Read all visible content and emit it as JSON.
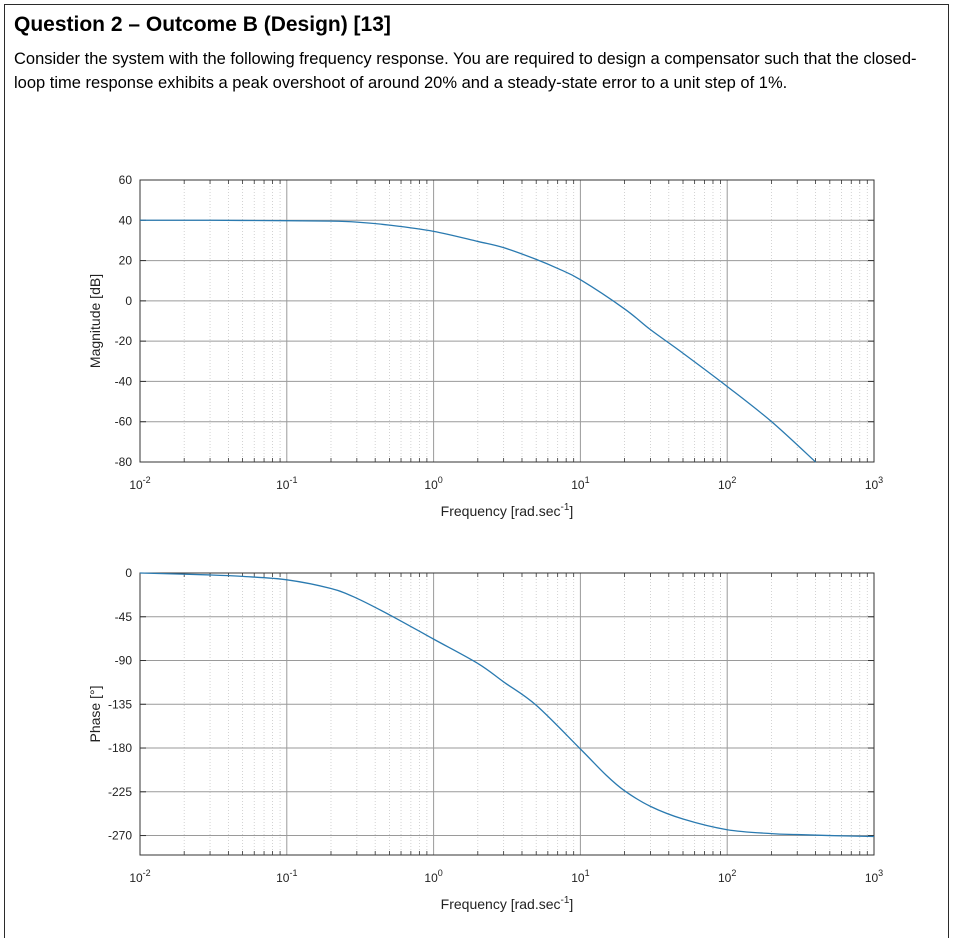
{
  "question": {
    "title": "Question 2 – Outcome B (Design) [13]",
    "text": "Consider the system with the following frequency response. You are required to design a compensator such that the closed-loop time response exhibits a peak overshoot of around 20% and a steady-state error to a unit step of 1%."
  },
  "colors": {
    "curve": "#2a7ab0",
    "major_grid": "#9a9a9a",
    "minor_grid": "#c8c8c8",
    "frame": "#333333"
  },
  "chart_data": [
    {
      "type": "line",
      "id": "magnitude",
      "xscale": "log",
      "xlim": [
        0.01,
        1000
      ],
      "ylim": [
        -80,
        60
      ],
      "xticks": [
        0.01,
        0.1,
        1,
        10,
        100,
        1000
      ],
      "xtick_labels": [
        {
          "base": "10",
          "exp": "-2"
        },
        {
          "base": "10",
          "exp": "-1"
        },
        {
          "base": "10",
          "exp": "0"
        },
        {
          "base": "10",
          "exp": "1"
        },
        {
          "base": "10",
          "exp": "2"
        },
        {
          "base": "10",
          "exp": "3"
        }
      ],
      "yticks": [
        60,
        40,
        20,
        0,
        -20,
        -40,
        -60,
        -80
      ],
      "ytick_labels": [
        "60",
        "40",
        "20",
        "0",
        "-20",
        "-40",
        "-60",
        "-80"
      ],
      "xlabel": {
        "text": "Frequency [rad.sec",
        "sup": "-1",
        "tail": "]"
      },
      "ylabel": "Magnitude [dB]",
      "grid": true,
      "x": [
        0.01,
        0.03,
        0.1,
        0.2,
        0.3,
        0.5,
        1,
        2,
        3,
        5,
        7,
        10,
        20,
        30,
        50,
        100,
        200,
        400
      ],
      "y": [
        40,
        40,
        39.8,
        39.6,
        39.1,
        37.6,
        34.5,
        29.5,
        26.4,
        20.6,
        16.1,
        10.5,
        -4,
        -14.3,
        -26,
        -42.5,
        -59.9,
        -80
      ]
    },
    {
      "type": "line",
      "id": "phase",
      "xscale": "log",
      "xlim": [
        0.01,
        1000
      ],
      "ylim": [
        -290,
        0
      ],
      "xticks": [
        0.01,
        0.1,
        1,
        10,
        100,
        1000
      ],
      "xtick_labels": [
        {
          "base": "10",
          "exp": "-2"
        },
        {
          "base": "10",
          "exp": "-1"
        },
        {
          "base": "10",
          "exp": "0"
        },
        {
          "base": "10",
          "exp": "1"
        },
        {
          "base": "10",
          "exp": "2"
        },
        {
          "base": "10",
          "exp": "3"
        }
      ],
      "yticks": [
        0,
        -45,
        -90,
        -135,
        -180,
        -225,
        -270
      ],
      "ytick_labels": [
        "0",
        "-45",
        "-90",
        "-135",
        "-180",
        "-225",
        "-270"
      ],
      "xlabel": {
        "text": "Frequency [rad.sec",
        "sup": "-1",
        "tail": "]"
      },
      "ylabel": "Phase [°]",
      "grid": true,
      "x": [
        0.01,
        0.03,
        0.05,
        0.1,
        0.2,
        0.3,
        0.5,
        1,
        2,
        3,
        5,
        10,
        15,
        20,
        30,
        50,
        100,
        200,
        300,
        500,
        1000
      ],
      "y": [
        0,
        -2,
        -3.5,
        -7,
        -16,
        -26,
        -43,
        -68,
        -93,
        -112,
        -136,
        -181,
        -208,
        -224,
        -240,
        -253,
        -264,
        -268,
        -269,
        -270,
        -271
      ]
    }
  ]
}
